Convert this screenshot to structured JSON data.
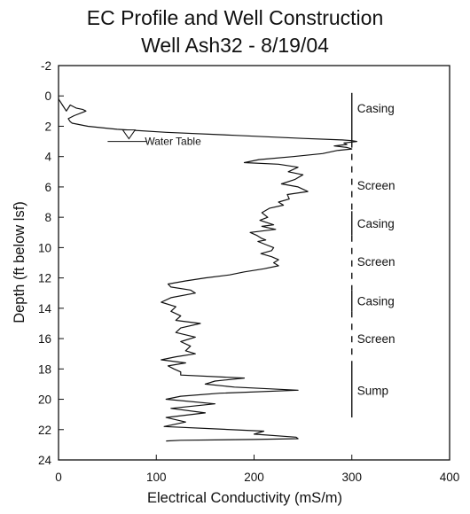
{
  "chart_data": {
    "type": "line",
    "title": "EC Profile and Well Construction",
    "subtitle": "Well Ash32 - 8/19/04",
    "xlabel": "Electrical Conductivity (mS/m)",
    "ylabel": "Depth (ft below lsf)",
    "xlim": [
      0,
      400
    ],
    "ylim": [
      24,
      -2
    ],
    "x_ticks": [
      0,
      100,
      200,
      300,
      400
    ],
    "y_ticks": [
      -2,
      0,
      2,
      4,
      6,
      8,
      10,
      12,
      14,
      16,
      18,
      20,
      22,
      24
    ],
    "grid": false,
    "series": [
      {
        "x": [
          0,
          2,
          4,
          8,
          12,
          18,
          25,
          28,
          24,
          16,
          10,
          12,
          14,
          30,
          60,
          110,
          180,
          250,
          290,
          300,
          305,
          292,
          295,
          282,
          295,
          300,
          285,
          270,
          240,
          205,
          190,
          225,
          245,
          235,
          250,
          242,
          228,
          245,
          255,
          234,
          236,
          225,
          230,
          216,
          208,
          214,
          206,
          220,
          208,
          222,
          196,
          203,
          208,
          212,
          204,
          212,
          220,
          218,
          207,
          218,
          225,
          220,
          225,
          210,
          190,
          175,
          150,
          130,
          112,
          115,
          135,
          140,
          115,
          105,
          120,
          115,
          125,
          120,
          145,
          125,
          120,
          140,
          125,
          135,
          130,
          140,
          120,
          105,
          130,
          112,
          118,
          125,
          125,
          190,
          160,
          150,
          180,
          245,
          165,
          125,
          110,
          160,
          115,
          150,
          110,
          130,
          108,
          210,
          200,
          243,
          245,
          200,
          125,
          110
        ],
        "y": [
          0.2,
          0.4,
          0.6,
          1.0,
          0.6,
          0.8,
          0.9,
          1.0,
          1.1,
          1.3,
          1.5,
          1.7,
          1.8,
          2.0,
          2.2,
          2.4,
          2.6,
          2.8,
          2.9,
          2.95,
          3.0,
          3.1,
          3.2,
          3.3,
          3.4,
          3.5,
          3.6,
          3.8,
          4.0,
          4.2,
          4.4,
          4.5,
          4.7,
          5.0,
          5.2,
          5.5,
          5.8,
          6.0,
          6.3,
          6.5,
          6.8,
          7.0,
          7.2,
          7.4,
          7.7,
          8.0,
          8.2,
          8.5,
          8.6,
          8.8,
          9.0,
          9.2,
          9.4,
          9.5,
          9.6,
          9.8,
          10.0,
          10.2,
          10.4,
          10.6,
          10.8,
          11.0,
          11.2,
          11.4,
          11.6,
          11.8,
          12.0,
          12.2,
          12.4,
          12.6,
          12.8,
          13.0,
          13.3,
          13.6,
          13.9,
          14.2,
          14.5,
          14.8,
          15.0,
          15.3,
          15.6,
          15.9,
          16.2,
          16.5,
          16.8,
          17.0,
          17.2,
          17.4,
          17.6,
          17.8,
          18.0,
          18.2,
          18.4,
          18.6,
          18.8,
          19.0,
          19.2,
          19.4,
          19.6,
          19.8,
          20.0,
          20.3,
          20.6,
          20.9,
          21.2,
          21.5,
          21.8,
          22.1,
          22.3,
          22.5,
          22.6,
          22.65,
          22.7,
          22.75
        ]
      }
    ],
    "annotations": {
      "water_table": {
        "label": "Water Table",
        "depth": 3.0,
        "x": 72
      },
      "well_construction": {
        "x": 300,
        "segments": [
          {
            "label": "Casing",
            "top": -0.2,
            "bottom": 3.0,
            "line": "solid",
            "label_depth": 0.8
          },
          {
            "label": "Screen",
            "top": 3.0,
            "bottom": 7.6,
            "line": "dashed",
            "label_depth": 5.9
          },
          {
            "label": "Casing",
            "top": 7.6,
            "bottom": 9.2,
            "line": "solid",
            "label_depth": 8.4
          },
          {
            "label": "Screen",
            "top": 9.2,
            "bottom": 12.8,
            "line": "dashed",
            "label_depth": 10.9
          },
          {
            "label": "Casing",
            "top": 12.8,
            "bottom": 14.2,
            "line": "solid",
            "label_depth": 13.5
          },
          {
            "label": "Screen",
            "top": 14.2,
            "bottom": 17.6,
            "line": "dashed",
            "label_depth": 16.0
          },
          {
            "label": "Sump",
            "top": 17.6,
            "bottom": 21.2,
            "line": "solid",
            "label_depth": 19.4
          }
        ]
      }
    }
  }
}
